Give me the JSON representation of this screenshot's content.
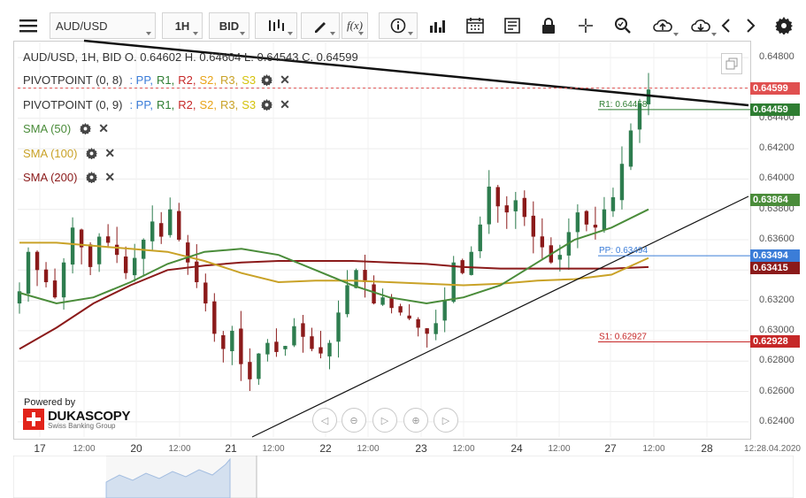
{
  "toolbar": {
    "symbol": "AUD/USD",
    "timeframe": "1H",
    "side": "BID"
  },
  "legend": {
    "ohlc": "AUD/USD, 1H, BID   O. 0.64602 H. 0.64604 L. 0.64543 C. 0.64599",
    "pivot1": {
      "name": "PIVOTPOINT (0, 8)",
      "items": [
        ": PP,",
        "R1,",
        "R2,",
        "S2,",
        "R3,",
        "S3"
      ]
    },
    "pivot2": {
      "name": "PIVOTPOINT (0, 9)",
      "items": [
        ": PP,",
        "R1,",
        "R2,",
        "S2,",
        "R3,",
        "S3"
      ]
    },
    "sma50": "SMA (50)",
    "sma100": "SMA (100)",
    "sma200": "SMA (200)"
  },
  "powered_by": "Powered by",
  "brand": {
    "name": "DUKASCOPY",
    "tagline": "Swiss Banking Group"
  },
  "colors": {
    "pp": "#3b7dd8",
    "r1": "#2e7d32",
    "r2": "#c62828",
    "s2": "#e8a317",
    "r3": "#c9a227",
    "s3": "#d4c20a",
    "sma50": "#4a8c3a",
    "sma100": "#c9a227",
    "sma200": "#8b1a1a",
    "candle": "#2e7d4f",
    "candle_down": "#8b1a1a"
  },
  "chart_data": {
    "type": "candlestick",
    "y_ticks": [
      "0.64800",
      "0.64600",
      "0.64400",
      "0.64200",
      "0.64000",
      "0.63800",
      "0.63600",
      "0.63400",
      "0.63200",
      "0.63000",
      "0.62800",
      "0.62600",
      "0.62400"
    ],
    "ylim": [
      0.623,
      0.649
    ],
    "x_ticks": [
      "17",
      "12:00",
      "20",
      "12:00",
      "21",
      "12:00",
      "22",
      "12:00",
      "23",
      "12:00",
      "24",
      "12:00",
      "27",
      "12:00",
      "28",
      "12:28.04.2020"
    ],
    "last_price": "0.64599",
    "tags": [
      {
        "label": "0.64599",
        "value": 0.64599,
        "color": "#e05050"
      },
      {
        "label": "0.64459",
        "value": 0.64459,
        "color": "#2e7d32"
      },
      {
        "label": "0.63864",
        "value": 0.63864,
        "color": "#4a8c3a"
      },
      {
        "label": "0.63494",
        "value": 0.63494,
        "color": "#3b7dd8"
      },
      {
        "label": "0.63415",
        "value": 0.63415,
        "color": "#8b1a1a"
      },
      {
        "label": "0.62928",
        "value": 0.62928,
        "color": "#c62828"
      }
    ],
    "pivot_lines": [
      {
        "label": "R1: 0.64458",
        "value": 0.64458,
        "color": "#2e7d32"
      },
      {
        "label": "PP: 0.63494",
        "value": 0.63494,
        "color": "#3b7dd8"
      },
      {
        "label": "S1: 0.62927",
        "value": 0.62927,
        "color": "#c62828"
      }
    ],
    "close_path": [
      0.6326,
      0.6352,
      0.634,
      0.6332,
      0.6322,
      0.6345,
      0.6368,
      0.6355,
      0.6342,
      0.6362,
      0.6358,
      0.635,
      0.6338,
      0.6348,
      0.636,
      0.6372,
      0.6362,
      0.638,
      0.636,
      0.6345,
      0.6332,
      0.6318,
      0.6298,
      0.6288,
      0.63,
      0.6278,
      0.6268,
      0.6285,
      0.6292,
      0.6286,
      0.629,
      0.6303,
      0.6296,
      0.6288,
      0.6285,
      0.6292,
      0.6312,
      0.633,
      0.634,
      0.6332,
      0.6318,
      0.6322,
      0.6315,
      0.6312,
      0.6308,
      0.6302,
      0.6298,
      0.6305,
      0.632,
      0.6345,
      0.6338,
      0.6352,
      0.637,
      0.6395,
      0.6382,
      0.6378,
      0.6386,
      0.6375,
      0.6362,
      0.6355,
      0.6345,
      0.635,
      0.6365,
      0.6378,
      0.637,
      0.6368,
      0.638,
      0.6388,
      0.641,
      0.6432,
      0.645,
      0.6459
    ],
    "sma50": [
      0.6325,
      0.6318,
      0.6322,
      0.6332,
      0.6344,
      0.6352,
      0.6354,
      0.635,
      0.634,
      0.633,
      0.6322,
      0.6318,
      0.6322,
      0.633,
      0.6345,
      0.636,
      0.6368,
      0.638
    ],
    "sma100": [
      0.6358,
      0.6358,
      0.6356,
      0.6354,
      0.6352,
      0.6346,
      0.6338,
      0.6332,
      0.6333,
      0.6333,
      0.6332,
      0.6331,
      0.633,
      0.6331,
      0.6333,
      0.6334,
      0.6337,
      0.6348
    ],
    "sma200": [
      0.6288,
      0.6302,
      0.6318,
      0.633,
      0.634,
      0.6343,
      0.6345,
      0.6346,
      0.6346,
      0.6346,
      0.6345,
      0.6344,
      0.6342,
      0.6341,
      0.6341,
      0.6341,
      0.6341,
      0.6342
    ]
  }
}
